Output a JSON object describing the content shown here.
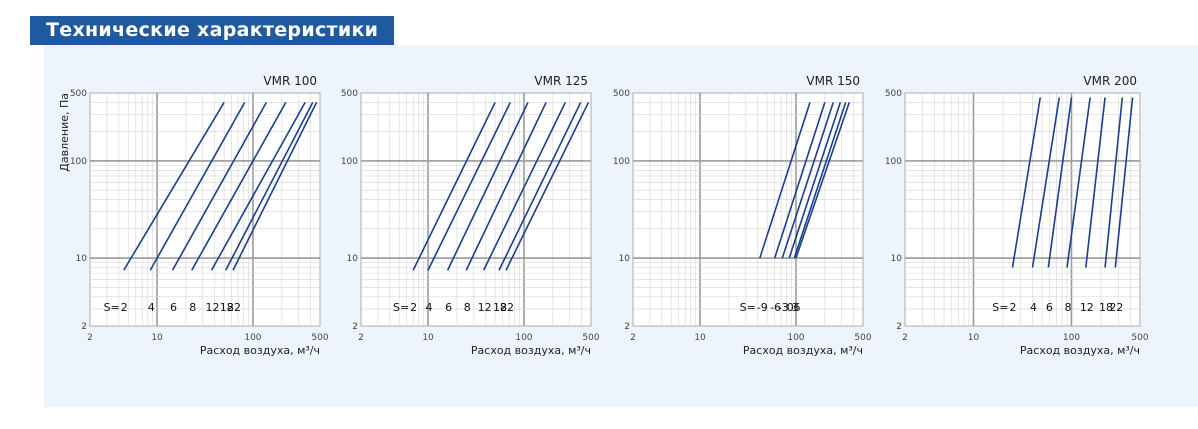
{
  "header": {
    "title": "Технические характеристики"
  },
  "colors": {
    "header_bg": "#1f5aa0",
    "panel_bg": "#edf4fb",
    "line": "#1a3f8c"
  },
  "chart_data": [
    {
      "type": "line",
      "title": "VMR 100",
      "xlabel": "Расход воздуха, м³/ч",
      "ylabel": "Давление, Па",
      "x_scale": "log",
      "y_scale": "log",
      "xlim": [
        2,
        500
      ],
      "ylim": [
        2,
        500
      ],
      "x_ticks": [
        "2",
        "10",
        "100",
        "500"
      ],
      "y_ticks": [
        "2",
        "10",
        "100",
        "500"
      ],
      "grid": true,
      "series_label_prefix": "S=",
      "series": [
        {
          "name": "2",
          "x": [
            4.5,
            50
          ],
          "y": [
            7.5,
            400
          ]
        },
        {
          "name": "4",
          "x": [
            8.5,
            82
          ],
          "y": [
            7.5,
            400
          ]
        },
        {
          "name": "6",
          "x": [
            14.5,
            138
          ],
          "y": [
            7.5,
            400
          ]
        },
        {
          "name": "8",
          "x": [
            23,
            220
          ],
          "y": [
            7.5,
            400
          ]
        },
        {
          "name": "12",
          "x": [
            37,
            350
          ],
          "y": [
            7.5,
            400
          ]
        },
        {
          "name": "18",
          "x": [
            52,
            420
          ],
          "y": [
            7.5,
            400
          ]
        },
        {
          "name": "22",
          "x": [
            62,
            460
          ],
          "y": [
            7.5,
            400
          ]
        }
      ]
    },
    {
      "type": "line",
      "title": "VMR 125",
      "xlabel": "Расход воздуха, м³/ч",
      "ylabel": "",
      "x_scale": "log",
      "y_scale": "log",
      "xlim": [
        2,
        500
      ],
      "ylim": [
        2,
        500
      ],
      "x_ticks": [
        "2",
        "10",
        "100",
        "500"
      ],
      "y_ticks": [
        "2",
        "10",
        "100",
        "500"
      ],
      "grid": true,
      "series_label_prefix": "S=",
      "series": [
        {
          "name": "2",
          "x": [
            7,
            50
          ],
          "y": [
            7.5,
            400
          ]
        },
        {
          "name": "4",
          "x": [
            10,
            72
          ],
          "y": [
            7.5,
            400
          ]
        },
        {
          "name": "6",
          "x": [
            16,
            110
          ],
          "y": [
            7.5,
            400
          ]
        },
        {
          "name": "8",
          "x": [
            25,
            170
          ],
          "y": [
            7.5,
            400
          ]
        },
        {
          "name": "12",
          "x": [
            38,
            270
          ],
          "y": [
            7.5,
            400
          ]
        },
        {
          "name": "18",
          "x": [
            55,
            390
          ],
          "y": [
            7.5,
            400
          ]
        },
        {
          "name": "22",
          "x": [
            65,
            470
          ],
          "y": [
            7.5,
            400
          ]
        }
      ]
    },
    {
      "type": "line",
      "title": "VMR 150",
      "xlabel": "Расход воздуха, м³/ч",
      "ylabel": "",
      "x_scale": "log",
      "y_scale": "log",
      "xlim": [
        2,
        500
      ],
      "ylim": [
        2,
        500
      ],
      "x_ticks": [
        "2",
        "10",
        "100",
        "500"
      ],
      "y_ticks": [
        "2",
        "10",
        "100",
        "500"
      ],
      "grid": true,
      "series_label_prefix": "S=",
      "series": [
        {
          "name": "-9",
          "x": [
            42,
            140
          ],
          "y": [
            10,
            400
          ]
        },
        {
          "name": "-6",
          "x": [
            60,
            200
          ],
          "y": [
            10,
            400
          ]
        },
        {
          "name": "-3",
          "x": [
            72,
            245
          ],
          "y": [
            10,
            400
          ]
        },
        {
          "name": "0",
          "x": [
            85,
            290
          ],
          "y": [
            10,
            400
          ]
        },
        {
          "name": "3",
          "x": [
            96,
            330
          ],
          "y": [
            10,
            400
          ]
        },
        {
          "name": "6",
          "x": [
            100,
            360
          ],
          "y": [
            10,
            400
          ]
        }
      ]
    },
    {
      "type": "line",
      "title": "VMR 200",
      "xlabel": "Расход воздуха, м³/ч",
      "ylabel": "",
      "x_scale": "log",
      "y_scale": "log",
      "xlim": [
        2,
        500
      ],
      "ylim": [
        2,
        500
      ],
      "x_ticks": [
        "2",
        "10",
        "100",
        "500"
      ],
      "y_ticks": [
        "2",
        "10",
        "100",
        "500"
      ],
      "grid": true,
      "series_label_prefix": "S=",
      "series": [
        {
          "name": "2",
          "x": [
            25,
            48
          ],
          "y": [
            8,
            450
          ]
        },
        {
          "name": "4",
          "x": [
            40,
            75
          ],
          "y": [
            8,
            450
          ]
        },
        {
          "name": "6",
          "x": [
            58,
            100
          ],
          "y": [
            8,
            450
          ]
        },
        {
          "name": "8",
          "x": [
            90,
            155
          ],
          "y": [
            8,
            450
          ]
        },
        {
          "name": "12",
          "x": [
            140,
            220
          ],
          "y": [
            8,
            450
          ]
        },
        {
          "name": "18",
          "x": [
            220,
            330
          ],
          "y": [
            8,
            450
          ]
        },
        {
          "name": "22",
          "x": [
            280,
            420
          ],
          "y": [
            8,
            450
          ]
        }
      ]
    }
  ]
}
